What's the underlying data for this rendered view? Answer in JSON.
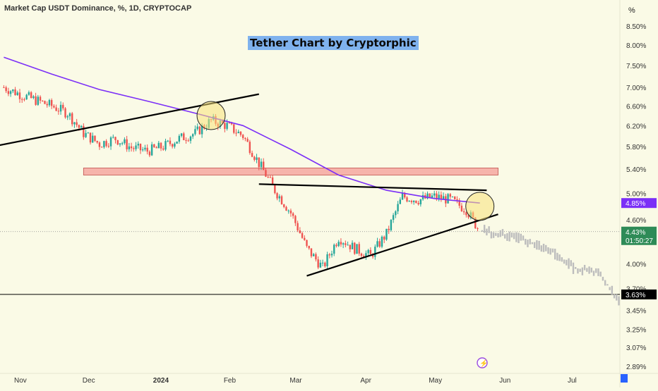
{
  "header": {
    "symbol_title": "Market Cap USDT Dominance, %, 1D, CRYPTOCAP"
  },
  "chart_title": "Tether Chart by Cryptorphic",
  "axis": {
    "unit": "%",
    "y_ticks": [
      "8.50%",
      "8.00%",
      "7.50%",
      "7.00%",
      "6.60%",
      "6.20%",
      "5.80%",
      "5.40%",
      "5.00%",
      "4.60%",
      "4.00%",
      "3.70%",
      "3.45%",
      "3.25%",
      "3.07%",
      "2.89%"
    ],
    "x_ticks": [
      "Nov",
      "Dec",
      "2024",
      "Feb",
      "Mar",
      "Apr",
      "May",
      "Jun",
      "Jul"
    ]
  },
  "price_labels": {
    "ma": {
      "text": "4.85%",
      "color": "#7b2ff7"
    },
    "last": {
      "text": "4.43%",
      "countdown": "01:50:27",
      "color": "#2e8b57"
    },
    "level": {
      "text": "3.63%",
      "color": "#000000"
    }
  },
  "colors": {
    "up": "#26a69a",
    "down": "#ef5350",
    "ma": "#7b2ff7",
    "projection": "#bdbdbd",
    "zone": "#f4a7a0",
    "highlight": "#f7e27a"
  },
  "chart_data": {
    "type": "candlestick",
    "title": "Tether Chart by Cryptorphic",
    "y_scale": "log",
    "ylim": [
      2.89,
      8.8
    ],
    "series": [
      {
        "name": "USDT Dominance",
        "points": [
          [
            "2023-10-25",
            7.0
          ],
          [
            "2023-11-01",
            6.85
          ],
          [
            "2023-11-08",
            6.72
          ],
          [
            "2023-11-15",
            6.6
          ],
          [
            "2023-11-22",
            6.45
          ],
          [
            "2023-11-29",
            6.05
          ],
          [
            "2023-12-06",
            5.85
          ],
          [
            "2023-12-13",
            5.95
          ],
          [
            "2023-12-20",
            5.78
          ],
          [
            "2023-12-27",
            5.72
          ],
          [
            "2024-01-03",
            5.8
          ],
          [
            "2024-01-10",
            5.95
          ],
          [
            "2024-01-17",
            6.05
          ],
          [
            "2024-01-24",
            6.3
          ],
          [
            "2024-01-31",
            6.2
          ],
          [
            "2024-02-07",
            6.0
          ],
          [
            "2024-02-14",
            5.5
          ],
          [
            "2024-02-21",
            5.05
          ],
          [
            "2024-02-28",
            4.7
          ],
          [
            "2024-03-06",
            4.2
          ],
          [
            "2024-03-13",
            3.95
          ],
          [
            "2024-03-20",
            4.35
          ],
          [
            "2024-03-27",
            4.2
          ],
          [
            "2024-04-03",
            4.1
          ],
          [
            "2024-04-10",
            4.4
          ],
          [
            "2024-04-17",
            4.95
          ],
          [
            "2024-04-24",
            4.9
          ],
          [
            "2024-05-01",
            4.95
          ],
          [
            "2024-05-08",
            4.9
          ],
          [
            "2024-05-15",
            4.75
          ],
          [
            "2024-05-21",
            4.43
          ]
        ]
      },
      {
        "name": "Moving Average",
        "points": [
          [
            "2023-10-25",
            7.7
          ],
          [
            "2023-11-15",
            7.3
          ],
          [
            "2023-12-06",
            6.95
          ],
          [
            "2023-12-27",
            6.7
          ],
          [
            "2024-01-17",
            6.45
          ],
          [
            "2024-02-07",
            6.2
          ],
          [
            "2024-02-28",
            5.75
          ],
          [
            "2024-03-20",
            5.3
          ],
          [
            "2024-04-10",
            5.05
          ],
          [
            "2024-05-01",
            4.92
          ],
          [
            "2024-05-21",
            4.85
          ]
        ]
      },
      {
        "name": "Projection",
        "points": [
          [
            "2024-05-22",
            4.45
          ],
          [
            "2024-06-05",
            4.35
          ],
          [
            "2024-06-20",
            4.2
          ],
          [
            "2024-07-01",
            3.95
          ],
          [
            "2024-07-12",
            3.9
          ],
          [
            "2024-07-22",
            3.5
          ]
        ]
      }
    ],
    "annotations": [
      {
        "type": "zone",
        "from": 5.3,
        "to": 5.42,
        "start": "2023-11-29",
        "end": "2024-05-29"
      },
      {
        "type": "level",
        "value": 3.63
      },
      {
        "type": "trendline",
        "start": [
          "2023-10-20",
          5.8
        ],
        "end": [
          "2024-02-14",
          6.85
        ]
      },
      {
        "type": "trendline",
        "start": [
          "2024-02-14",
          5.15
        ],
        "end": [
          "2024-05-24",
          5.05
        ]
      },
      {
        "type": "trendline",
        "start": [
          "2024-03-06",
          3.85
        ],
        "end": [
          "2024-05-29",
          4.68
        ]
      },
      {
        "type": "circle",
        "at": [
          "2024-01-24",
          6.4
        ]
      },
      {
        "type": "circle",
        "at": [
          "2024-05-21",
          4.8
        ]
      }
    ]
  }
}
